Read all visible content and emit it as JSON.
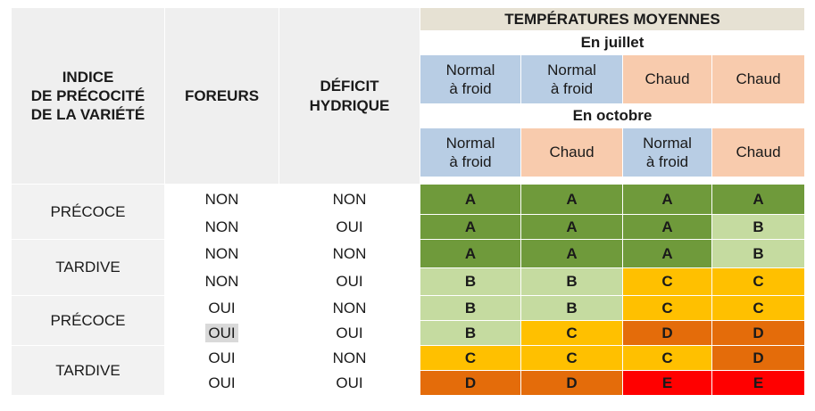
{
  "header": {
    "col1": "INDICE\nDE PRÉCOCITÉ\nDE LA VARIÉTÉ",
    "col2": "FOREURS",
    "col3": "DÉFICIT\nHYDRIQUE",
    "temps_title": "TEMPÉRATURES MOYENNES",
    "july_label": "En juillet",
    "october_label": "En octobre",
    "july": [
      "Normal\nà froid",
      "Normal\nà froid",
      "Chaud",
      "Chaud"
    ],
    "october": [
      "Normal\nà froid",
      "Chaud",
      "Normal\nà froid",
      "Chaud"
    ]
  },
  "groups": [
    {
      "label": "PRÉCOCE"
    },
    {
      "label": "TARDIVE"
    },
    {
      "label": "PRÉCOCE"
    },
    {
      "label": "TARDIVE"
    }
  ],
  "rows": [
    {
      "foreurs": "NON",
      "deficit": "NON",
      "cells": [
        "A",
        "A",
        "A",
        "A"
      ]
    },
    {
      "foreurs": "NON",
      "deficit": "OUI",
      "cells": [
        "A",
        "A",
        "A",
        "B"
      ]
    },
    {
      "foreurs": "NON",
      "deficit": "NON",
      "cells": [
        "A",
        "A",
        "A",
        "B"
      ]
    },
    {
      "foreurs": "NON",
      "deficit": "OUI",
      "cells": [
        "B",
        "B",
        "C",
        "C"
      ]
    },
    {
      "foreurs": "OUI",
      "deficit": "NON",
      "cells": [
        "B",
        "B",
        "C",
        "C"
      ]
    },
    {
      "foreurs": "OUI",
      "deficit": "OUI",
      "cells": [
        "B",
        "C",
        "D",
        "D"
      ]
    },
    {
      "foreurs": "OUI",
      "deficit": "NON",
      "cells": [
        "C",
        "C",
        "C",
        "D"
      ]
    },
    {
      "foreurs": "OUI",
      "deficit": "OUI",
      "cells": [
        "D",
        "D",
        "E",
        "E"
      ]
    }
  ],
  "grade_colors": {
    "A": "#6f9a3b",
    "B": "#c5dba0",
    "C": "#ffc000",
    "D": "#e46c0a",
    "E": "#ff0000"
  }
}
